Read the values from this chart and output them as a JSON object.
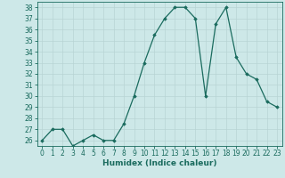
{
  "x": [
    0,
    1,
    2,
    3,
    4,
    5,
    6,
    7,
    8,
    9,
    10,
    11,
    12,
    13,
    14,
    15,
    16,
    17,
    18,
    19,
    20,
    21,
    22,
    23
  ],
  "y": [
    26,
    27,
    27,
    25.5,
    26,
    26.5,
    26,
    26,
    27.5,
    30,
    33,
    35.5,
    37,
    38,
    38,
    37,
    30,
    36.5,
    38,
    33.5,
    32,
    31.5,
    29.5,
    29
  ],
  "line_color": "#1a6b5e",
  "marker": "D",
  "marker_size": 1.8,
  "bg_color": "#cde8e8",
  "grid_color": "#b8d4d4",
  "xlabel": "Humidex (Indice chaleur)",
  "ylim": [
    25.5,
    38.5
  ],
  "xlim": [
    -0.5,
    23.5
  ],
  "yticks": [
    26,
    27,
    28,
    29,
    30,
    31,
    32,
    33,
    34,
    35,
    36,
    37,
    38
  ],
  "xticks": [
    0,
    1,
    2,
    3,
    4,
    5,
    6,
    7,
    8,
    9,
    10,
    11,
    12,
    13,
    14,
    15,
    16,
    17,
    18,
    19,
    20,
    21,
    22,
    23
  ],
  "xlabel_fontsize": 6.5,
  "tick_fontsize": 5.5,
  "linewidth": 0.9
}
